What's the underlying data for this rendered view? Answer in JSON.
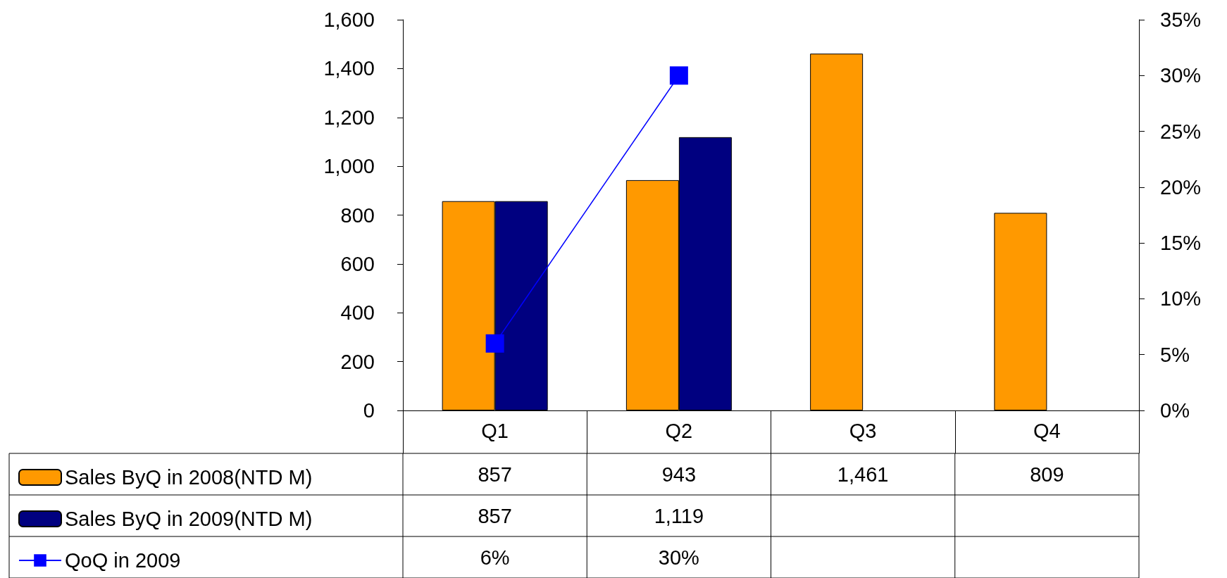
{
  "chart_data": {
    "type": "bar",
    "categories": [
      "Q1",
      "Q2",
      "Q3",
      "Q4"
    ],
    "series": [
      {
        "name": "Sales ByQ in 2008(NTD M)",
        "color": "#ff9900",
        "values": [
          857,
          943,
          1461,
          809
        ],
        "value_labels": [
          "857",
          "943",
          "1,461",
          "809"
        ]
      },
      {
        "name": "Sales ByQ in 2009(NTD M)",
        "color": "#000080",
        "values": [
          857,
          1119,
          null,
          null
        ],
        "value_labels": [
          "857",
          "1,119",
          null,
          null
        ]
      },
      {
        "name": "QoQ in 2009",
        "type": "line",
        "axis": "y2",
        "color": "#0000ff",
        "values": [
          6,
          30,
          null,
          null
        ],
        "value_labels": [
          "6%",
          "30%",
          null,
          null
        ]
      }
    ],
    "ylim": [
      0,
      1600
    ],
    "yticks": [
      0,
      200,
      400,
      600,
      800,
      {
        "value": 1000,
        "label": "1,000"
      },
      {
        "value": 1200,
        "label": "1,200"
      },
      {
        "value": 1400,
        "label": "1,400"
      },
      {
        "value": 1600,
        "label": "1,600"
      }
    ],
    "y2lim": [
      0,
      35
    ],
    "y2ticks": [
      {
        "value": 0,
        "label": "0%"
      },
      {
        "value": 5,
        "label": "5%"
      },
      {
        "value": 10,
        "label": "10%"
      },
      {
        "value": 15,
        "label": "15%"
      },
      {
        "value": 20,
        "label": "20%"
      },
      {
        "value": 25,
        "label": "25%"
      },
      {
        "value": 30,
        "label": "30%"
      },
      {
        "value": 35,
        "label": "35%"
      }
    ],
    "marker": "square",
    "line_style": "solid",
    "grid": false,
    "legend": "bottom left"
  }
}
